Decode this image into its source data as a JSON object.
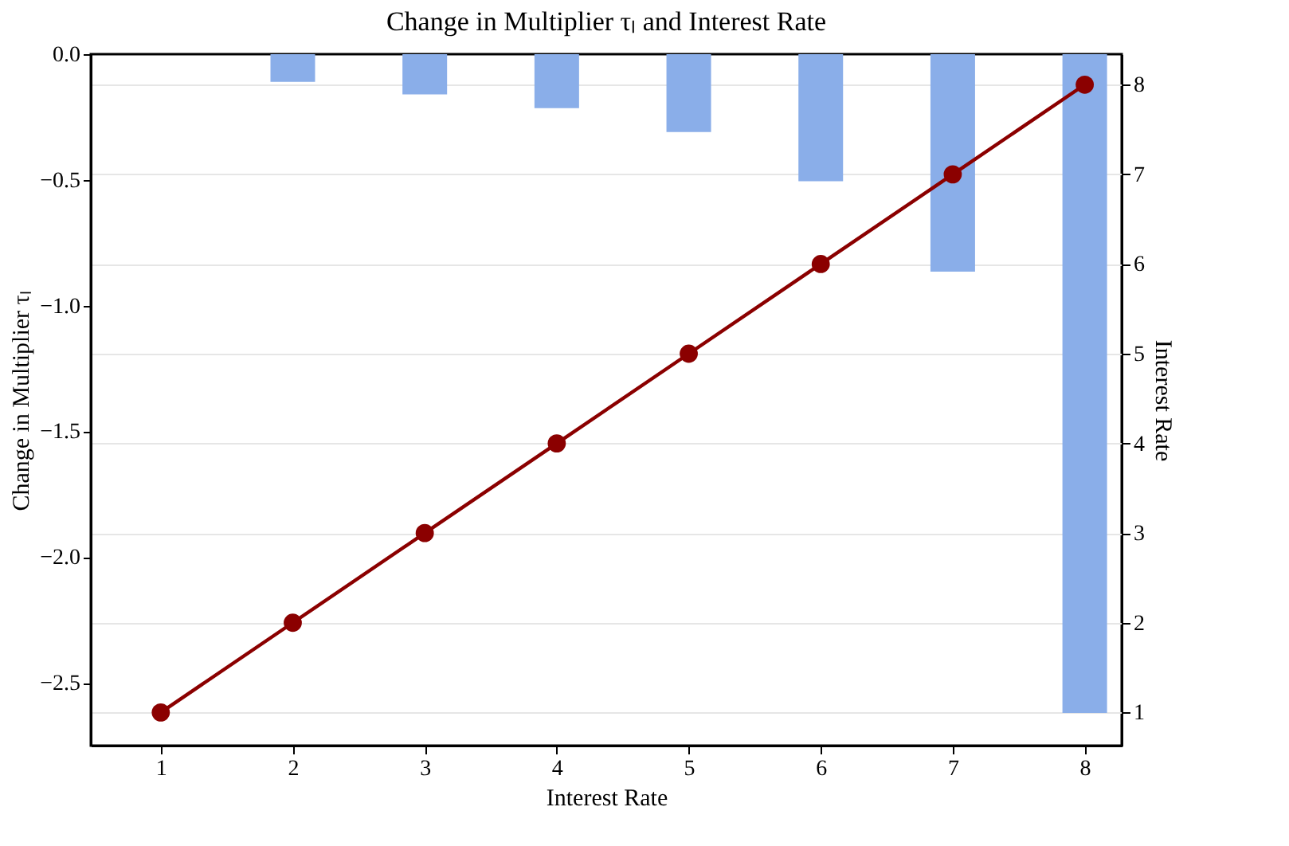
{
  "chart_data": {
    "type": "bar",
    "title": "Change in Multiplier τₗ and Interest Rate",
    "xlabel": "Interest Rate",
    "ylabel": "Change in Multiplier τₗ",
    "y2label": "Interest Rate",
    "x": [
      1,
      2,
      3,
      4,
      5,
      6,
      7,
      8
    ],
    "series": [
      {
        "color": "#8aaee9",
        "values": [
          0,
          -0.11,
          -0.16,
          -0.215,
          -0.31,
          -0.505,
          -0.865,
          -2.62
        ]
      },
      {
        "type": "line",
        "axis": "y2",
        "color": "#8b0000",
        "marker": "circle",
        "values": [
          1,
          2,
          3,
          4,
          5,
          6,
          7,
          8
        ]
      }
    ],
    "xlim": [
      0.47,
      8.28
    ],
    "xticks": [
      1,
      2,
      3,
      4,
      5,
      6,
      7,
      8
    ],
    "ylim": [
      -2.75,
      0.0
    ],
    "yticks": [
      {
        "value": 0,
        "label": "0.0"
      },
      {
        "value": -0.5,
        "label": "−0.5"
      },
      {
        "value": -1,
        "label": "−1.0"
      },
      {
        "value": -1.5,
        "label": "−1.5"
      },
      {
        "value": -2,
        "label": "−2.0"
      },
      {
        "value": -2.5,
        "label": "−2.5"
      }
    ],
    "y2lim": [
      0.63,
      8.34
    ],
    "y2ticks": [
      1,
      2,
      3,
      4,
      5,
      6,
      7,
      8
    ],
    "grid": "y"
  }
}
